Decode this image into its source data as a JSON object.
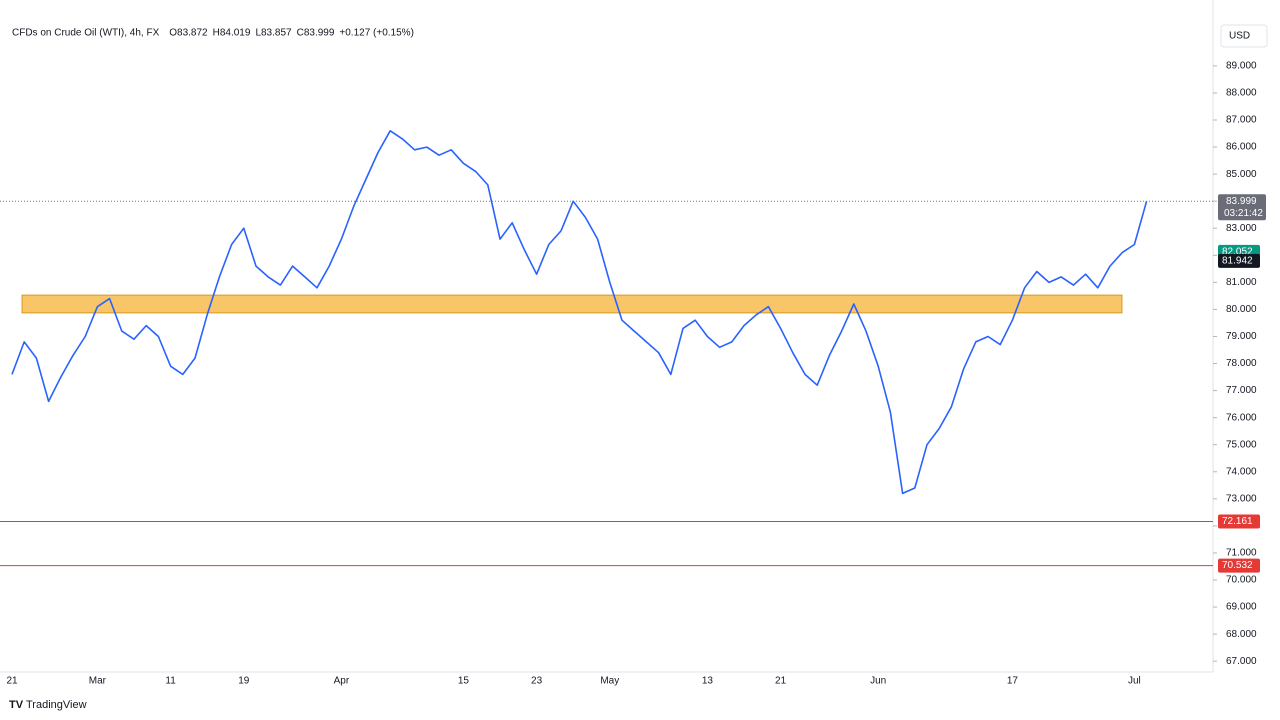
{
  "chart_data": {
    "type": "line",
    "title": "CFDs on Crude Oil (WTI), 4h, FX",
    "ohlc": [
      "O83.872",
      "H84.019",
      "L83.857",
      "C83.999",
      "+0.127 (+0.15%)"
    ],
    "currency": "USD",
    "countdown": "03:21:42",
    "brand": "TradingView",
    "categories": [
      "21",
      null,
      null,
      null,
      null,
      null,
      null,
      "Mar",
      null,
      null,
      null,
      null,
      null,
      "11",
      null,
      null,
      null,
      null,
      null,
      "19",
      null,
      null,
      null,
      null,
      null,
      null,
      null,
      "Apr",
      null,
      null,
      null,
      null,
      null,
      null,
      null,
      null,
      null,
      "15",
      null,
      null,
      null,
      null,
      null,
      "23",
      null,
      null,
      null,
      null,
      null,
      "May",
      null,
      null,
      null,
      null,
      null,
      null,
      null,
      "13",
      null,
      null,
      null,
      null,
      null,
      "21",
      null,
      null,
      null,
      null,
      null,
      null,
      null,
      "Jun",
      null,
      null,
      null,
      null,
      null,
      null,
      null,
      null,
      null,
      null,
      "17",
      null,
      null,
      null,
      null,
      null,
      null,
      null,
      null,
      null,
      "Jul",
      null
    ],
    "series": [
      {
        "name": "CFDs on Crude Oil (WTI)",
        "color": "#2962ff",
        "values": [
          77.6,
          78.8,
          78.2,
          76.6,
          77.5,
          78.3,
          79.0,
          80.1,
          80.4,
          79.2,
          78.9,
          79.4,
          79.0,
          77.9,
          77.6,
          78.2,
          79.8,
          81.2,
          82.4,
          83.0,
          81.6,
          81.2,
          80.9,
          81.6,
          81.2,
          80.8,
          81.6,
          82.6,
          83.8,
          84.8,
          85.8,
          86.6,
          86.3,
          85.9,
          86.0,
          85.7,
          85.9,
          85.4,
          85.1,
          84.6,
          82.6,
          83.2,
          82.2,
          81.3,
          82.4,
          82.9,
          84.0,
          83.4,
          82.6,
          81.0,
          79.6,
          79.2,
          78.8,
          78.4,
          77.6,
          79.3,
          79.6,
          79.0,
          78.6,
          78.8,
          79.4,
          79.8,
          80.1,
          79.3,
          78.4,
          77.6,
          77.2,
          78.3,
          79.2,
          80.2,
          79.2,
          77.9,
          76.2,
          73.2,
          73.4,
          75.0,
          75.6,
          76.4,
          77.8,
          78.8,
          79.0,
          78.7,
          79.6,
          80.8,
          81.4,
          81.0,
          81.2,
          80.9,
          81.3,
          80.8,
          81.6,
          82.1,
          82.4,
          83.999
        ]
      }
    ],
    "zone": [
      79.87,
      80.53
    ],
    "zone_color": "#f5b335",
    "levels": [
      {
        "value": 72.161,
        "color": "#e53935"
      },
      {
        "value": 70.532,
        "color": "#e53935"
      }
    ],
    "indicator_labels": [
      {
        "value": 82.052,
        "color": "#089981"
      },
      {
        "value": 81.942,
        "color": "#131722"
      }
    ],
    "ylim": [
      66.6,
      90.4
    ],
    "yticks": [
      {
        "value": 67,
        "label": "67.000"
      },
      {
        "value": 68,
        "label": "68.000"
      },
      {
        "value": 69,
        "label": "69.000"
      },
      {
        "value": 70,
        "label": "70.000"
      },
      {
        "value": 71,
        "label": "71.000"
      },
      {
        "value": 72,
        "label": "72.000"
      },
      {
        "value": 73,
        "label": "73.000"
      },
      {
        "value": 74,
        "label": "74.000"
      },
      {
        "value": 75,
        "label": "75.000"
      },
      {
        "value": 76,
        "label": "76.000"
      },
      {
        "value": 77,
        "label": "77.000"
      },
      {
        "value": 78,
        "label": "78.000"
      },
      {
        "value": 79,
        "label": "79.000"
      },
      {
        "value": 80,
        "label": "80.000"
      },
      {
        "value": 81,
        "label": "81.000"
      },
      {
        "value": 82,
        "label": "82.000"
      },
      {
        "value": 83,
        "label": "83.000"
      },
      {
        "value": 84,
        "label": "84.000"
      },
      {
        "value": 85,
        "label": "85.000"
      },
      {
        "value": 86,
        "label": "86.000"
      },
      {
        "value": 87,
        "label": "87.000"
      },
      {
        "value": 88,
        "label": "88.000"
      },
      {
        "value": 89,
        "label": "89.000"
      }
    ]
  }
}
